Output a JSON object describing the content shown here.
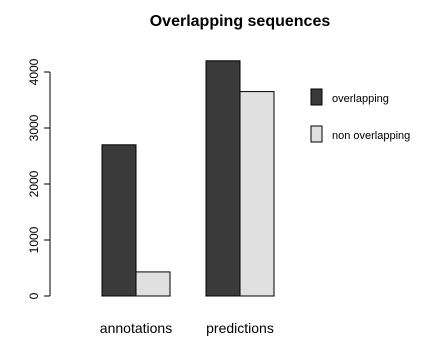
{
  "chart_data": {
    "type": "bar",
    "title": "Overlapping sequences",
    "categories": [
      "annotations",
      "predictions"
    ],
    "series": [
      {
        "name": "overlapping",
        "values": [
          2700,
          4200
        ],
        "color": "#3a3a3a"
      },
      {
        "name": "non overlapping",
        "values": [
          430,
          3650
        ],
        "color": "#e0e0e0"
      }
    ],
    "ylim": [
      0,
      4000
    ],
    "yticks": [
      "0",
      "1000",
      "2000",
      "3000",
      "4000"
    ],
    "legend_position": "right",
    "grid": false
  }
}
